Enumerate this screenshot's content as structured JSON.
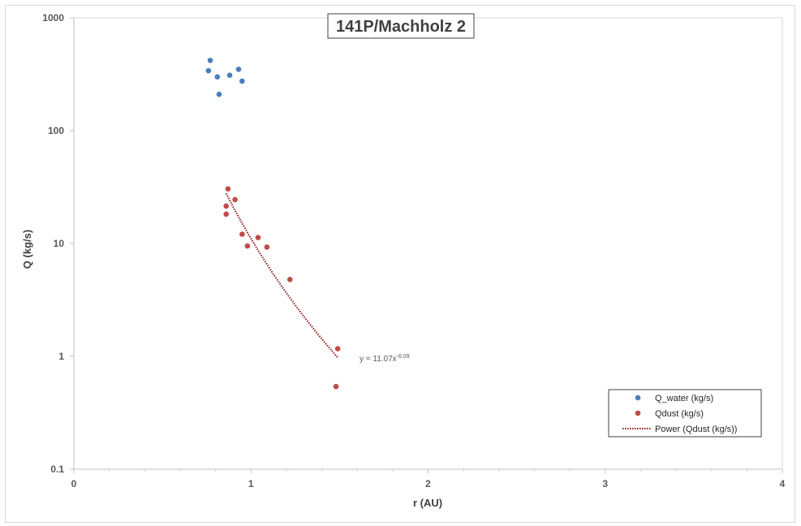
{
  "chart_data": {
    "type": "scatter",
    "title": "141P/Machholz 2",
    "xlabel": "r (AU)",
    "ylabel": "Q (kg/s)",
    "xlim": [
      0,
      4
    ],
    "ylim": [
      0.1,
      1000
    ],
    "yscale": "log",
    "x_ticks": [
      "0",
      "1",
      "2",
      "3",
      "4"
    ],
    "y_ticks": [
      "0.1",
      "1",
      "10",
      "100",
      "1000"
    ],
    "grid": false,
    "legend_position": "bottom-right",
    "series": [
      {
        "name": "Q_water (kg/s)",
        "color": "#4a7ebb",
        "marker": "circle",
        "points": [
          {
            "x": 0.77,
            "y": 420
          },
          {
            "x": 0.76,
            "y": 340
          },
          {
            "x": 0.81,
            "y": 300
          },
          {
            "x": 0.82,
            "y": 210
          },
          {
            "x": 0.88,
            "y": 310
          },
          {
            "x": 0.93,
            "y": 350
          },
          {
            "x": 0.95,
            "y": 275
          }
        ]
      },
      {
        "name": "Qdust (kg/s)",
        "color": "#be4b48",
        "marker": "circle",
        "points": [
          {
            "x": 0.87,
            "y": 30.5
          },
          {
            "x": 0.91,
            "y": 24.5
          },
          {
            "x": 0.86,
            "y": 21.5
          },
          {
            "x": 0.86,
            "y": 18.2
          },
          {
            "x": 0.95,
            "y": 12.1
          },
          {
            "x": 1.04,
            "y": 11.3
          },
          {
            "x": 0.98,
            "y": 9.5
          },
          {
            "x": 1.09,
            "y": 9.3
          },
          {
            "x": 1.22,
            "y": 4.8
          },
          {
            "x": 1.49,
            "y": 1.17
          },
          {
            "x": 1.48,
            "y": 0.54
          }
        ]
      }
    ],
    "trendline": {
      "name": "Power (Qdust (kg/s))",
      "type": "power",
      "color": "#8b1a1a",
      "coefficient": 11.07,
      "exponent": -6.09,
      "x_range": [
        0.86,
        1.49
      ],
      "equation_text": "y = 11.07x",
      "equation_exponent": "-6.09"
    }
  }
}
